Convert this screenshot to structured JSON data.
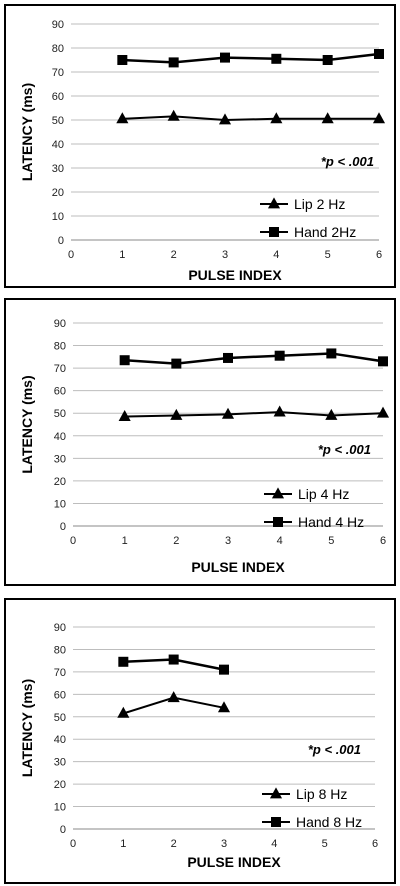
{
  "chart_data": [
    {
      "type": "line",
      "ylabel": "LATENCY (ms)",
      "xlabel": "PULSE INDEX",
      "xlim": [
        0,
        6
      ],
      "ylim": [
        0,
        90
      ],
      "x_ticks": [
        "0",
        "1",
        "2",
        "3",
        "4",
        "5",
        "6"
      ],
      "y_ticks": [
        "0",
        "10",
        "20",
        "30",
        "40",
        "50",
        "60",
        "70",
        "80",
        "90"
      ],
      "grid": "horizontal",
      "annotation": "*p < .001",
      "legend_position": "bottom-right",
      "series": [
        {
          "name": "Lip 2 Hz",
          "marker": "triangle",
          "x": [
            1,
            2,
            3,
            4,
            5,
            6
          ],
          "values": [
            50.5,
            51.5,
            50,
            50.5,
            50.5,
            50.5
          ]
        },
        {
          "name": "Hand 2Hz",
          "marker": "square",
          "x": [
            1,
            2,
            3,
            4,
            5,
            6
          ],
          "values": [
            75,
            74,
            76,
            75.5,
            75,
            77.5
          ]
        }
      ]
    },
    {
      "type": "line",
      "ylabel": "LATENCY (ms)",
      "xlabel": "PULSE INDEX",
      "xlim": [
        0,
        6
      ],
      "ylim": [
        0,
        90
      ],
      "x_ticks": [
        "0",
        "1",
        "2",
        "3",
        "4",
        "5",
        "6"
      ],
      "y_ticks": [
        "0",
        "10",
        "20",
        "30",
        "40",
        "50",
        "60",
        "70",
        "80",
        "90"
      ],
      "grid": "horizontal",
      "annotation": "*p < .001",
      "legend_position": "bottom-right",
      "series": [
        {
          "name": "Lip 4 Hz",
          "marker": "triangle",
          "x": [
            1,
            2,
            3,
            4,
            5,
            6
          ],
          "values": [
            48.5,
            49,
            49.5,
            50.5,
            49,
            50
          ]
        },
        {
          "name": "Hand 4 Hz",
          "marker": "square",
          "x": [
            1,
            2,
            3,
            4,
            5,
            6
          ],
          "values": [
            73.5,
            72,
            74.5,
            75.5,
            76.5,
            73
          ]
        }
      ]
    },
    {
      "type": "line",
      "ylabel": "LATENCY (ms)",
      "xlabel": "PULSE INDEX",
      "xlim": [
        0,
        6
      ],
      "ylim": [
        0,
        90
      ],
      "x_ticks": [
        "0",
        "1",
        "2",
        "3",
        "4",
        "5",
        "6"
      ],
      "y_ticks": [
        "0",
        "10",
        "20",
        "30",
        "40",
        "50",
        "60",
        "70",
        "80",
        "90"
      ],
      "grid": "horizontal",
      "annotation": "*p < .001",
      "legend_position": "bottom-right",
      "series": [
        {
          "name": "Lip 8 Hz",
          "marker": "triangle",
          "x": [
            1,
            2,
            3
          ],
          "values": [
            51.5,
            58.5,
            54
          ]
        },
        {
          "name": "Hand 8 Hz",
          "marker": "square",
          "x": [
            1,
            2,
            3
          ],
          "values": [
            74.5,
            75.5,
            71
          ]
        }
      ]
    }
  ]
}
